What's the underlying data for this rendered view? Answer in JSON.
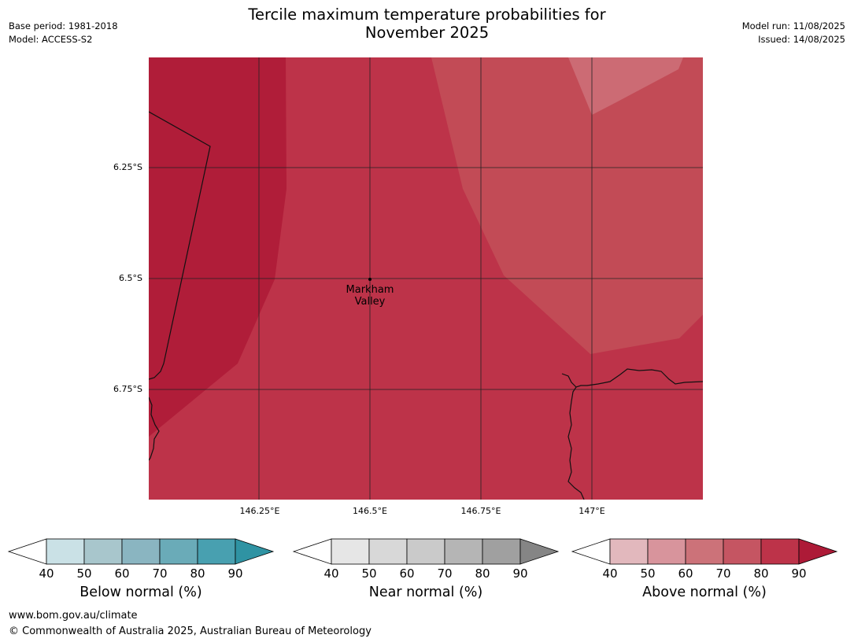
{
  "header": {
    "title_line1": "Tercile maximum temperature probabilities for",
    "title_line2": "November 2025",
    "base_period": "Base period: 1981-2018",
    "model": "Model: ACCESS-S2",
    "model_run": "Model run: 11/08/2025",
    "issued": "Issued: 14/08/2025"
  },
  "map": {
    "lat_labels": [
      "6.25°S",
      "6.5°S",
      "6.75°S"
    ],
    "lon_labels": [
      "146.25°E",
      "146.5°E",
      "146.75°E",
      "147°E"
    ],
    "place_line1": "Markham",
    "place_line2": "Valley",
    "colors": {
      "p90": "#b01d39",
      "p80": "#bd3349",
      "p70": "#c24b56",
      "p60": "#cc6b74",
      "border": "#111111",
      "grid": "#222222"
    }
  },
  "legends": [
    {
      "title": "Below normal (%)",
      "ticks": [
        "40",
        "50",
        "60",
        "70",
        "80",
        "90"
      ],
      "colors": [
        "#cae1e6",
        "#a8c6cc",
        "#8ab5c1",
        "#6aabb8",
        "#48a0b0",
        "#2f93a3"
      ]
    },
    {
      "title": "Near normal (%)",
      "ticks": [
        "40",
        "50",
        "60",
        "70",
        "80",
        "90"
      ],
      "colors": [
        "#e6e6e6",
        "#d8d8d8",
        "#cacaca",
        "#b5b5b5",
        "#a0a0a0",
        "#858585"
      ]
    },
    {
      "title": "Above normal (%)",
      "ticks": [
        "40",
        "50",
        "60",
        "70",
        "80",
        "90"
      ],
      "colors": [
        "#e2b8bd",
        "#d8949c",
        "#cc7279",
        "#c55562",
        "#bd3349",
        "#ad1a37"
      ]
    }
  ],
  "footer": {
    "url": "www.bom.gov.au/climate",
    "copyright": "© Commonwealth of Australia 2025, Australian Bureau of Meteorology"
  }
}
